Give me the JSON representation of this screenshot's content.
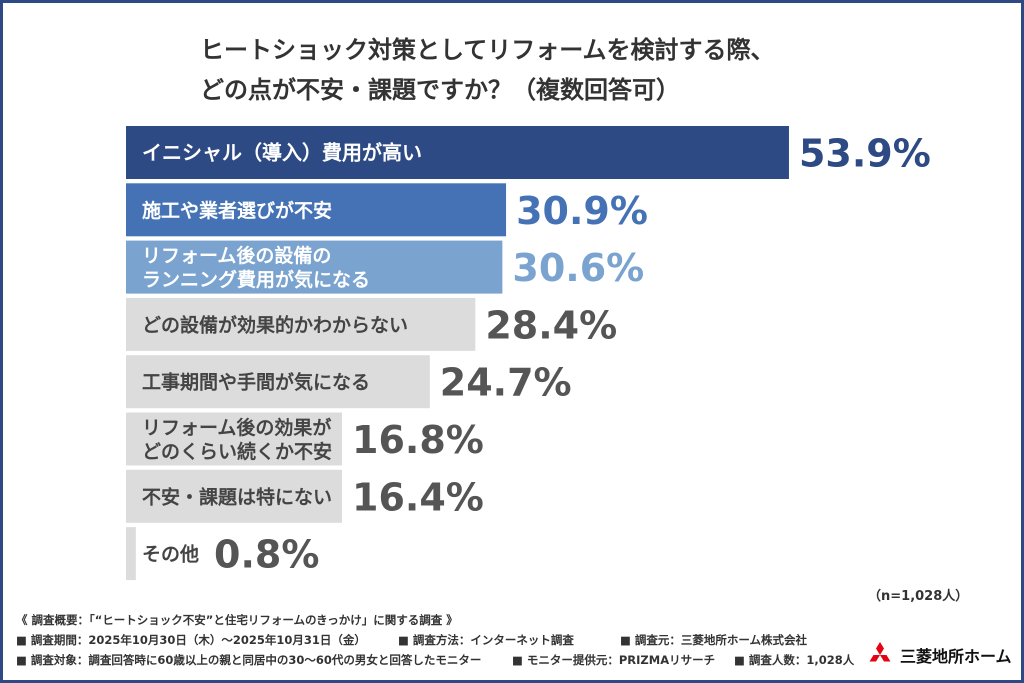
{
  "title_lines": [
    "ヒートショック対策としてリフォームを検討する際、",
    "どの点が不安・課題ですか？（複数回答可）"
  ],
  "chart_data": {
    "type": "bar",
    "orientation": "horizontal",
    "categories": [
      [
        "イニシャル（導入）費用が高い"
      ],
      [
        "施工や業者選びが不安"
      ],
      [
        "リフォーム後の設備の",
        "ランニング費用が気になる"
      ],
      [
        "どの設備が効果的かわからない"
      ],
      [
        "工事期間や手間が気になる"
      ],
      [
        "リフォーム後の効果が",
        "どのくらい続くか不安"
      ],
      [
        "不安・課題は特にない"
      ],
      [
        "その他"
      ]
    ],
    "values": [
      53.9,
      30.9,
      30.6,
      28.4,
      24.7,
      16.8,
      16.4,
      0.8
    ],
    "value_labels": [
      "53.9%",
      "30.9%",
      "30.6%",
      "28.4%",
      "24.7%",
      "16.8%",
      "16.4%",
      "0.8%"
    ],
    "unit": "%",
    "bar_colors": [
      "#2d4a84",
      "#4472b4",
      "#7aa3cf",
      "#dcdcdc",
      "#dcdcdc",
      "#dcdcdc",
      "#dcdcdc",
      "#dcdcdc"
    ],
    "label_colors": [
      "#ffffff",
      "#ffffff",
      "#ffffff",
      "#444444",
      "#444444",
      "#444444",
      "#444444",
      "#444444"
    ],
    "value_colors": [
      "#2d4a84",
      "#4472b4",
      "#7aa3cf",
      "#555555",
      "#555555",
      "#555555",
      "#555555",
      "#555555"
    ]
  },
  "sample_note": "（n=1,028人）",
  "footer": {
    "heading": "《 調査概要：「“ヒートショック不安”と住宅リフォームのきっかけ」に関する調査 》",
    "period": "■ 調査期間：2025年10月30日（木）〜2025年10月31日（金）",
    "method": "■ 調査方法：インターネット調査",
    "organizer": "■ 調査元：三菱地所ホーム株式会社",
    "target": "■ 調査対象：調査回答時に60歳以上の親と同居中の30〜60代の男女と回答したモニター",
    "provider": "■ モニター提供元：PRIZMAリサーチ",
    "count": "■ 調査人数：1,028人"
  },
  "logo": {
    "text": "三菱地所ホーム",
    "color": "#e60012",
    "icon": "mitsubishi-three-diamonds-icon"
  }
}
